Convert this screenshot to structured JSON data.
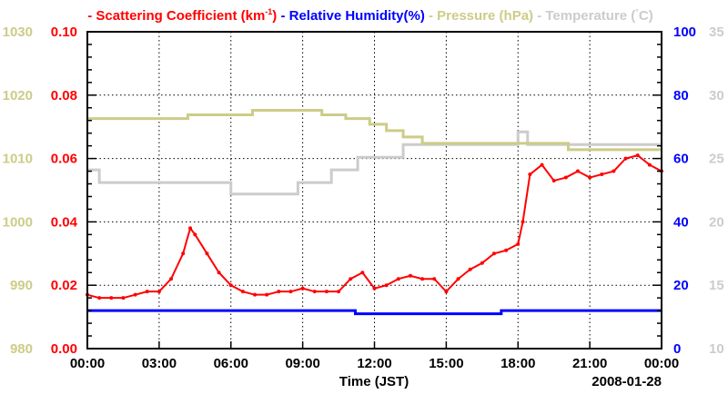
{
  "chart_data": {
    "type": "line",
    "legend": {
      "placement": "top",
      "entries": [
        {
          "prefix": "- ",
          "label": "Scattering Coefficient (km",
          "sup": "-1",
          "suffix": ")",
          "color": "#ff0000"
        },
        {
          "prefix": " - ",
          "label": "Relative Humidity(%)",
          "sup": "",
          "suffix": "",
          "color": "#0000ff"
        },
        {
          "prefix": " - ",
          "label": "Pressure (hPa)",
          "sup": "",
          "suffix": "",
          "color": "#cccc88"
        },
        {
          "prefix": " - ",
          "label": "Temperature (",
          "sup": "°",
          "suffix": "C)",
          "color": "#cccccc"
        }
      ]
    },
    "xlabel": "Time (JST)",
    "date_label": "2008-01-28",
    "xlim": [
      0,
      24
    ],
    "x_ticks": [
      0,
      3,
      6,
      9,
      12,
      15,
      18,
      21,
      24
    ],
    "x_tick_labels": [
      "00:00",
      "03:00",
      "06:00",
      "09:00",
      "12:00",
      "15:00",
      "18:00",
      "21:00",
      "00:00"
    ],
    "grid": true,
    "axes": {
      "scattering": {
        "side": "left-inner",
        "range": [
          0,
          0.1
        ],
        "ticks": [
          "0.00",
          "0.02",
          "0.04",
          "0.06",
          "0.08",
          "0.10"
        ],
        "color": "#ff0000"
      },
      "pressure": {
        "side": "left-outer",
        "range": [
          980,
          1030
        ],
        "ticks": [
          "980",
          "990",
          "1000",
          "1010",
          "1020",
          "1030"
        ],
        "color": "#cccc88"
      },
      "humidity": {
        "side": "right-inner",
        "range": [
          0,
          100
        ],
        "ticks": [
          "0",
          "20",
          "40",
          "60",
          "80",
          "100"
        ],
        "color": "#0000ff"
      },
      "temperature": {
        "side": "right-outer",
        "range": [
          10,
          35
        ],
        "ticks": [
          "10",
          "15",
          "20",
          "25",
          "30",
          "35"
        ],
        "color": "#cccccc"
      }
    },
    "series": [
      {
        "name": "Scattering Coefficient",
        "axis": "scattering",
        "color": "#ff0000",
        "style": "points",
        "x": [
          0,
          0.5,
          1,
          1.5,
          2,
          2.5,
          3,
          3.5,
          4,
          4.3,
          4.5,
          5,
          5.5,
          6,
          6.5,
          7,
          7.5,
          8,
          8.5,
          9,
          9.5,
          10,
          10.5,
          11,
          11.5,
          12,
          12.5,
          13,
          13.5,
          14,
          14.5,
          15,
          15.5,
          16,
          16.5,
          17,
          17.5,
          18,
          18.2,
          18.5,
          19,
          19.5,
          20,
          20.5,
          21,
          21.5,
          22,
          22.5,
          23,
          23.5,
          24
        ],
        "values": [
          0.017,
          0.016,
          0.016,
          0.016,
          0.017,
          0.018,
          0.018,
          0.022,
          0.03,
          0.038,
          0.036,
          0.03,
          0.024,
          0.02,
          0.018,
          0.017,
          0.017,
          0.018,
          0.018,
          0.019,
          0.018,
          0.018,
          0.018,
          0.022,
          0.024,
          0.019,
          0.02,
          0.022,
          0.023,
          0.022,
          0.022,
          0.018,
          0.022,
          0.025,
          0.027,
          0.03,
          0.031,
          0.033,
          0.04,
          0.055,
          0.058,
          0.053,
          0.054,
          0.056,
          0.054,
          0.055,
          0.056,
          0.06,
          0.061,
          0.058,
          0.056
        ]
      },
      {
        "name": "Relative Humidity",
        "axis": "humidity",
        "color": "#0000ff",
        "style": "step",
        "x": [
          0,
          10.9,
          11.2,
          14.9,
          17.3,
          24
        ],
        "values": [
          12,
          12,
          11,
          11,
          12,
          12
        ]
      },
      {
        "name": "Pressure",
        "axis": "pressure",
        "color": "#cccc88",
        "style": "step",
        "x": [
          0,
          4.2,
          6.9,
          9.8,
          10.8,
          11.8,
          12.5,
          13.2,
          14.0,
          20.1,
          21.5,
          24
        ],
        "values": [
          1016.3,
          1016.9,
          1017.6,
          1016.9,
          1016.3,
          1015.4,
          1014.4,
          1013.4,
          1012.4,
          1011.4,
          1011.4,
          1011.4
        ]
      },
      {
        "name": "Temperature",
        "axis": "temperature",
        "color": "#cccccc",
        "style": "step",
        "x": [
          0,
          0.5,
          6.0,
          8.8,
          10.2,
          11.3,
          13.2,
          18.0,
          18.4,
          24
        ],
        "values": [
          24.1,
          23.1,
          22.2,
          23.1,
          24.1,
          25.1,
          26.1,
          27.1,
          26.1,
          26.1
        ]
      }
    ]
  }
}
